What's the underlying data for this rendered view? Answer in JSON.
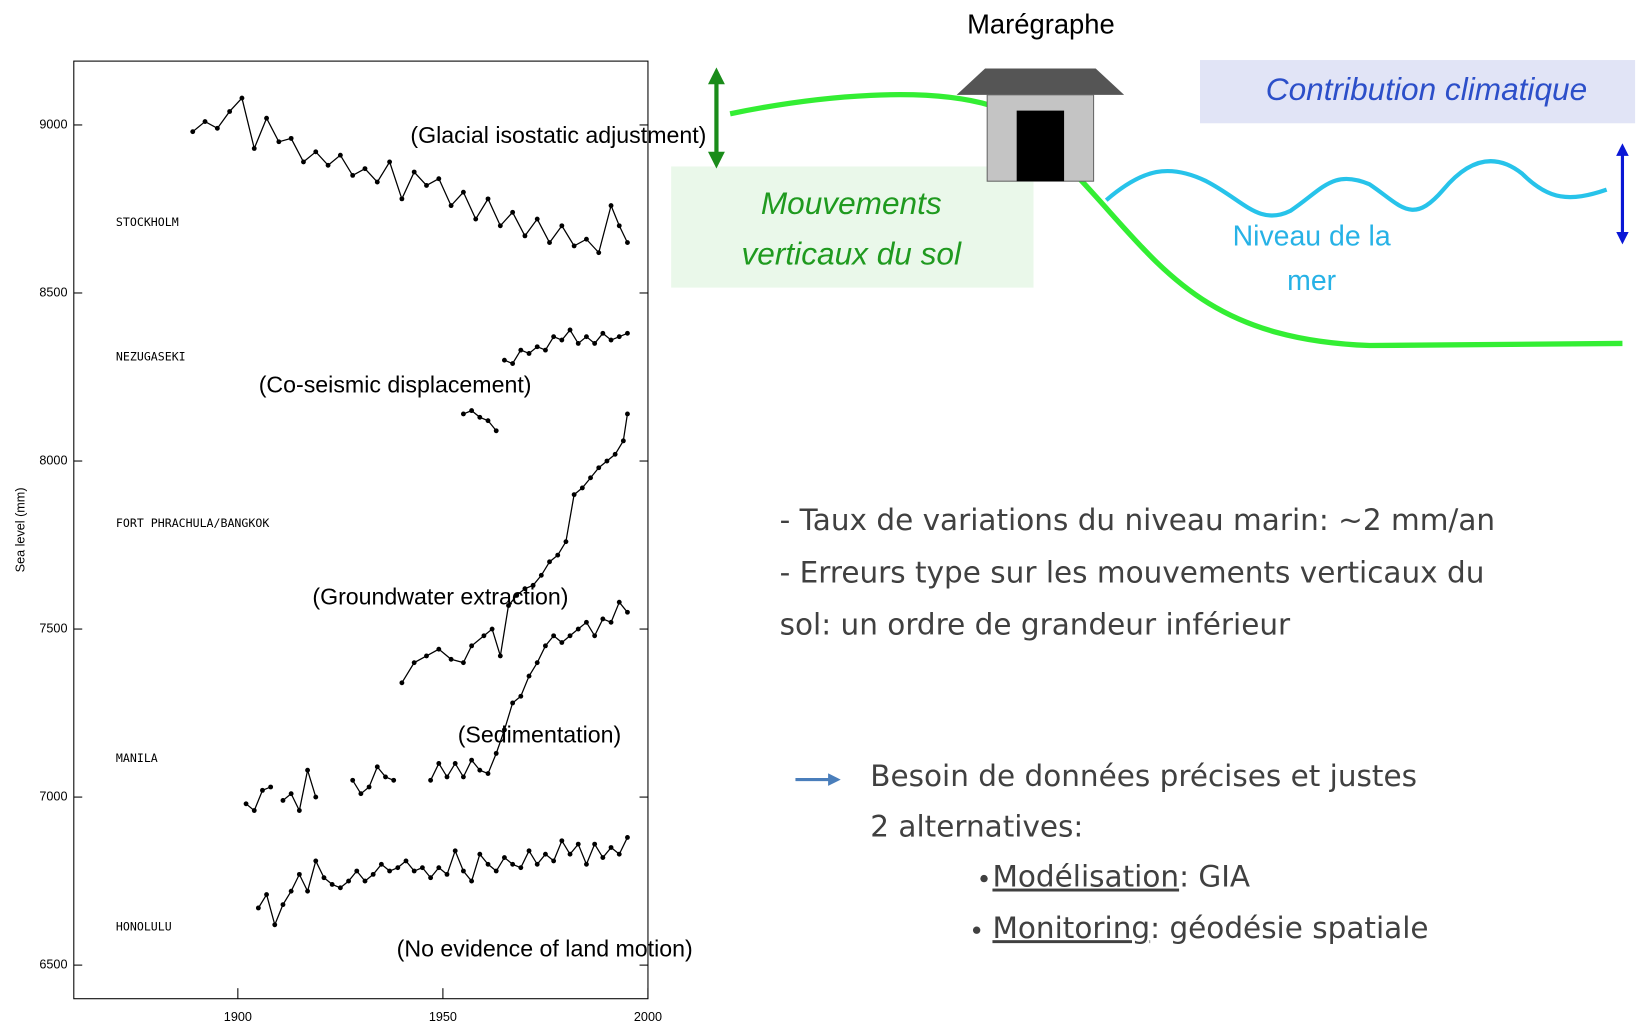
{
  "chart_data": {
    "type": "line",
    "y_label": "Sea level (mm)",
    "xlim": [
      1860,
      2000
    ],
    "xticks": [
      1900,
      1950,
      2000
    ],
    "ylim": [
      6400,
      9190
    ],
    "yticks": [
      6500,
      7000,
      7500,
      8000,
      8500,
      9000
    ],
    "color": "#000000",
    "series": [
      {
        "name": "STOCKHOLM",
        "annotation": "(Glacial isostatic adjustment)",
        "x": [
          1889,
          1892,
          1895,
          1898,
          1901,
          1904,
          1907,
          1910,
          1913,
          1916,
          1919,
          1922,
          1925,
          1928,
          1931,
          1934,
          1937,
          1940,
          1943,
          1946,
          1949,
          1952,
          1955,
          1958,
          1961,
          1964,
          1967,
          1970,
          1973,
          1976,
          1979,
          1982,
          1985,
          1988,
          1991,
          1993,
          1995
        ],
        "values": [
          8980,
          9010,
          8990,
          9040,
          9080,
          8930,
          9020,
          8950,
          8960,
          8890,
          8920,
          8880,
          8910,
          8850,
          8870,
          8830,
          8890,
          8780,
          8860,
          8820,
          8840,
          8760,
          8800,
          8720,
          8780,
          8700,
          8740,
          8670,
          8720,
          8650,
          8700,
          8640,
          8660,
          8620,
          8760,
          8700,
          8650
        ]
      },
      {
        "name": "NEZUGASEKI",
        "annotation": "(Co-seismic displacement)",
        "x": [
          1955,
          1957,
          1959,
          1961,
          1963,
          1964,
          1965,
          1967,
          1969,
          1971,
          1973,
          1975,
          1977,
          1979,
          1981,
          1983,
          1985,
          1987,
          1989,
          1991,
          1993,
          1995
        ],
        "values": [
          8140,
          8150,
          8130,
          8120,
          8090,
          null,
          8300,
          8290,
          8330,
          8320,
          8340,
          8330,
          8370,
          8360,
          8390,
          8350,
          8370,
          8350,
          8380,
          8360,
          8370,
          8380
        ]
      },
      {
        "name": "FORT PHRACHULA/BANGKOK",
        "annotation": "(Groundwater extraction)",
        "x": [
          1940,
          1943,
          1946,
          1949,
          1952,
          1955,
          1957,
          1960,
          1962,
          1964,
          1966,
          1968,
          1970,
          1972,
          1974,
          1976,
          1978,
          1980,
          1982,
          1984,
          1986,
          1988,
          1990,
          1992,
          1994,
          1995
        ],
        "values": [
          7340,
          7400,
          7420,
          7440,
          7410,
          7400,
          7450,
          7480,
          7500,
          7420,
          7570,
          7600,
          7620,
          7630,
          7660,
          7700,
          7720,
          7760,
          7900,
          7920,
          7950,
          7980,
          8000,
          8020,
          8060,
          8140
        ]
      },
      {
        "name": "MANILA",
        "annotation": "(Sedimentation)",
        "x": [
          1902,
          1904,
          1906,
          1908,
          1910,
          1911,
          1913,
          1915,
          1917,
          1919,
          1921,
          1928,
          1930,
          1932,
          1934,
          1936,
          1938,
          1939,
          1947,
          1949,
          1951,
          1953,
          1955,
          1957,
          1959,
          1961,
          1963,
          1965,
          1967,
          1969,
          1971,
          1973,
          1975,
          1977,
          1979,
          1981,
          1983,
          1985,
          1987,
          1989,
          1991,
          1993,
          1995
        ],
        "values": [
          6980,
          6960,
          7020,
          7030,
          null,
          6990,
          7010,
          6960,
          7080,
          7000,
          null,
          7050,
          7010,
          7030,
          7090,
          7060,
          7050,
          null,
          7050,
          7100,
          7060,
          7100,
          7060,
          7110,
          7080,
          7070,
          7130,
          7200,
          7280,
          7300,
          7360,
          7400,
          7450,
          7480,
          7460,
          7480,
          7500,
          7520,
          7480,
          7530,
          7520,
          7580,
          7550
        ]
      },
      {
        "name": "HONOLULU",
        "annotation": "(No evidence of land motion)",
        "x": [
          1905,
          1907,
          1909,
          1911,
          1913,
          1915,
          1917,
          1919,
          1921,
          1923,
          1925,
          1927,
          1929,
          1931,
          1933,
          1935,
          1937,
          1939,
          1941,
          1943,
          1945,
          1947,
          1949,
          1951,
          1953,
          1955,
          1957,
          1959,
          1961,
          1963,
          1965,
          1967,
          1969,
          1971,
          1973,
          1975,
          1977,
          1979,
          1981,
          1983,
          1985,
          1987,
          1989,
          1991,
          1993,
          1995
        ],
        "values": [
          6670,
          6710,
          6620,
          6680,
          6720,
          6770,
          6720,
          6810,
          6760,
          6740,
          6730,
          6750,
          6780,
          6750,
          6770,
          6800,
          6780,
          6790,
          6810,
          6780,
          6790,
          6760,
          6790,
          6770,
          6840,
          6780,
          6750,
          6830,
          6800,
          6780,
          6820,
          6800,
          6790,
          6840,
          6800,
          6830,
          6810,
          6870,
          6830,
          6860,
          6800,
          6860,
          6820,
          6850,
          6830,
          6880
        ]
      }
    ]
  },
  "diagram": {
    "tide_gauge": "Marégraphe",
    "climate": "Contribution climatique",
    "ground": [
      "Mouvements",
      "verticaux du sol"
    ],
    "sea": [
      "Niveau de la",
      "mer"
    ]
  },
  "notes": {
    "lines": [
      "- Taux de variations du niveau marin: ~2 mm/an",
      "- Erreurs type sur les mouvements verticaux du",
      "sol:  un ordre de grandeur inférieur"
    ],
    "need": "Besoin de données précises et justes",
    "alternatives": "2 alternatives:",
    "options": [
      {
        "term": "Modélisation",
        "rest": ": GIA"
      },
      {
        "term": "Monitoring",
        "rest": ": géodésie spatiale"
      }
    ]
  }
}
